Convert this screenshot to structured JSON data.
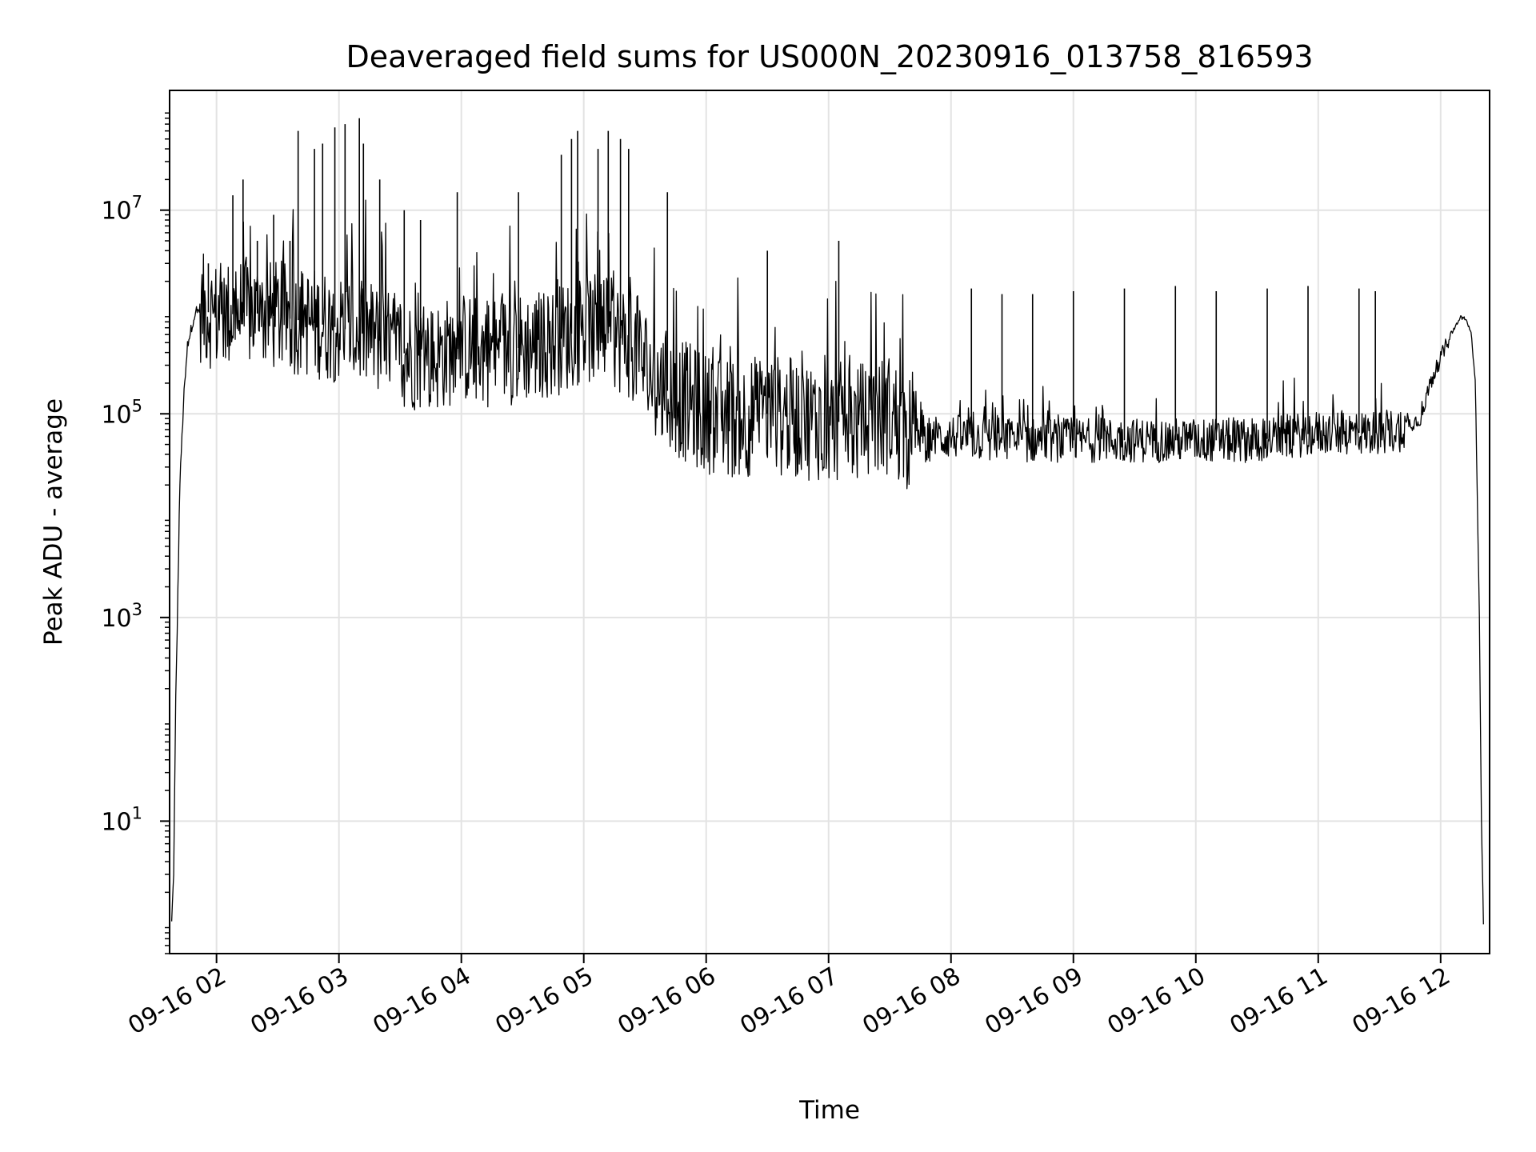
{
  "chart_data": {
    "type": "line",
    "title": "Deaveraged field sums for US000N_20230916_013758_816593",
    "xlabel": "Time",
    "ylabel": "Peak ADU - average",
    "y_scale": "log",
    "xlim": [
      "2023-09-16 01:37",
      "2023-09-16 12:24"
    ],
    "ylim": [
      0.5,
      150000000
    ],
    "grid": true,
    "x_tick_labels": [
      "09-16 02",
      "09-16 03",
      "09-16 04",
      "09-16 05",
      "09-16 06",
      "09-16 07",
      "09-16 08",
      "09-16 09",
      "09-16 10",
      "09-16 11",
      "09-16 12"
    ],
    "x_ticks": [
      "2023-09-16 02:00",
      "2023-09-16 03:00",
      "2023-09-16 04:00",
      "2023-09-16 05:00",
      "2023-09-16 06:00",
      "2023-09-16 07:00",
      "2023-09-16 08:00",
      "2023-09-16 09:00",
      "2023-09-16 10:00",
      "2023-09-16 11:00",
      "2023-09-16 12:00"
    ],
    "y_ticks": [
      {
        "value": 10,
        "base": "10",
        "exp": "1"
      },
      {
        "value": 1000,
        "base": "10",
        "exp": "3"
      },
      {
        "value": 100000,
        "base": "10",
        "exp": "5"
      },
      {
        "value": 10000000,
        "base": "10",
        "exp": "7"
      }
    ],
    "series_color": "#000000",
    "series": [
      {
        "x": [
          "2023-09-16 01:38",
          "2023-09-16 01:39",
          "2023-09-16 01:40",
          "2023-09-16 01:41",
          "2023-09-16 01:42",
          "2023-09-16 01:44",
          "2023-09-16 01:46",
          "2023-09-16 01:49",
          "2023-09-16 01:52",
          "2023-09-16 02:00",
          "2023-09-16 02:15",
          "2023-09-16 02:30",
          "2023-09-16 02:45",
          "2023-09-16 03:00",
          "2023-09-16 03:15",
          "2023-09-16 03:30",
          "2023-09-16 03:45",
          "2023-09-16 04:00",
          "2023-09-16 04:15",
          "2023-09-16 04:30",
          "2023-09-16 04:45",
          "2023-09-16 05:00",
          "2023-09-16 05:15",
          "2023-09-16 05:25",
          "2023-09-16 05:35",
          "2023-09-16 05:45",
          "2023-09-16 06:00",
          "2023-09-16 06:15",
          "2023-09-16 06:30",
          "2023-09-16 06:45",
          "2023-09-16 07:00",
          "2023-09-16 07:15",
          "2023-09-16 07:30",
          "2023-09-16 07:40",
          "2023-09-16 07:45",
          "2023-09-16 08:00",
          "2023-09-16 08:30",
          "2023-09-16 09:00",
          "2023-09-16 09:30",
          "2023-09-16 10:00",
          "2023-09-16 10:30",
          "2023-09-16 11:00",
          "2023-09-16 11:30",
          "2023-09-16 11:40",
          "2023-09-16 11:50",
          "2023-09-16 11:55",
          "2023-09-16 12:00",
          "2023-09-16 12:05",
          "2023-09-16 12:10",
          "2023-09-16 12:13",
          "2023-09-16 12:15",
          "2023-09-16 12:17",
          "2023-09-16 12:19",
          "2023-09-16 12:20",
          "2023-09-16 12:21"
        ],
        "y": [
          1,
          3,
          150,
          1500,
          20000,
          150000,
          500000,
          900000,
          1100000,
          900000,
          1000000,
          900000,
          800000,
          700000,
          600000,
          400000,
          350000,
          450000,
          400000,
          450000,
          500000,
          700000,
          600000,
          450000,
          200000,
          150000,
          100000,
          90000,
          100000,
          90000,
          85000,
          80000,
          100000,
          60000,
          55000,
          60000,
          55000,
          55000,
          55000,
          55000,
          55000,
          65000,
          65000,
          70000,
          90000,
          200000,
          350000,
          600000,
          900000,
          800000,
          600000,
          200000,
          1000,
          10,
          1
        ]
      }
    ],
    "spikes": [
      {
        "x": "2023-09-16 01:56",
        "y": 3000000
      },
      {
        "x": "2023-09-16 02:08",
        "y": 14000000
      },
      {
        "x": "2023-09-16 02:13",
        "y": 20000000
      },
      {
        "x": "2023-09-16 02:20",
        "y": 5000000
      },
      {
        "x": "2023-09-16 02:28",
        "y": 9000000
      },
      {
        "x": "2023-09-16 02:36",
        "y": 5000000
      },
      {
        "x": "2023-09-16 02:40",
        "y": 60000000
      },
      {
        "x": "2023-09-16 02:48",
        "y": 40000000
      },
      {
        "x": "2023-09-16 02:52",
        "y": 45000000
      },
      {
        "x": "2023-09-16 02:58",
        "y": 65000000
      },
      {
        "x": "2023-09-16 03:03",
        "y": 70000000
      },
      {
        "x": "2023-09-16 03:10",
        "y": 80000000
      },
      {
        "x": "2023-09-16 03:12",
        "y": 45000000
      },
      {
        "x": "2023-09-16 03:20",
        "y": 20000000
      },
      {
        "x": "2023-09-16 03:32",
        "y": 10000000
      },
      {
        "x": "2023-09-16 03:40",
        "y": 8000000
      },
      {
        "x": "2023-09-16 03:58",
        "y": 15000000
      },
      {
        "x": "2023-09-16 04:28",
        "y": 15000000
      },
      {
        "x": "2023-09-16 04:49",
        "y": 35000000
      },
      {
        "x": "2023-09-16 04:54",
        "y": 50000000
      },
      {
        "x": "2023-09-16 04:57",
        "y": 60000000
      },
      {
        "x": "2023-09-16 05:07",
        "y": 40000000
      },
      {
        "x": "2023-09-16 05:12",
        "y": 60000000
      },
      {
        "x": "2023-09-16 05:18",
        "y": 50000000
      },
      {
        "x": "2023-09-16 05:22",
        "y": 40000000
      },
      {
        "x": "2023-09-16 05:41",
        "y": 15000000
      },
      {
        "x": "2023-09-16 06:30",
        "y": 4000000
      },
      {
        "x": "2023-09-16 07:05",
        "y": 5000000
      },
      {
        "x": "2023-09-16 08:10",
        "y": 1700000
      },
      {
        "x": "2023-09-16 08:25",
        "y": 1500000
      },
      {
        "x": "2023-09-16 08:40",
        "y": 1500000
      },
      {
        "x": "2023-09-16 09:00",
        "y": 1600000
      },
      {
        "x": "2023-09-16 09:25",
        "y": 1700000
      },
      {
        "x": "2023-09-16 09:50",
        "y": 1800000
      },
      {
        "x": "2023-09-16 10:10",
        "y": 1600000
      },
      {
        "x": "2023-09-16 10:35",
        "y": 1700000
      },
      {
        "x": "2023-09-16 10:55",
        "y": 1800000
      },
      {
        "x": "2023-09-16 11:20",
        "y": 1700000
      },
      {
        "x": "2023-09-16 11:28",
        "y": 1600000
      }
    ]
  }
}
